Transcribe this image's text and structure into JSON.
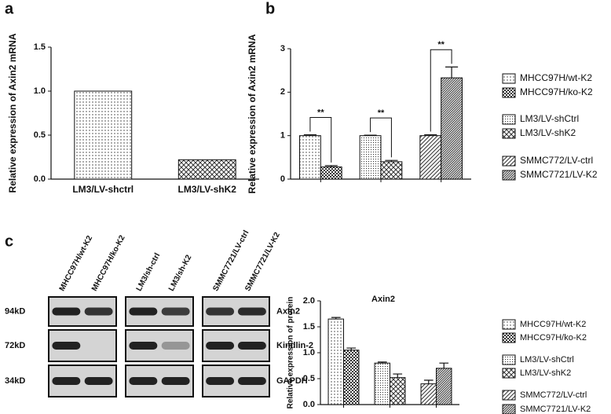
{
  "chart_data": [
    {
      "type": "bar",
      "panel": "a",
      "ylabel": "Relative expression of Axin2 mRNA",
      "categories": [
        "LM3/LV-shctrl",
        "LM3/LV-shK2"
      ],
      "values": [
        1.0,
        0.22
      ],
      "color": "#333333",
      "patterns": [
        "dots",
        "crosshatch"
      ],
      "ylim": [
        0,
        1.5
      ],
      "yticks": [
        {
          "value": 0,
          "label": "0.0"
        },
        0.5,
        {
          "value": 1,
          "label": "1.0"
        },
        1.5
      ]
    },
    {
      "type": "bar",
      "panel": "b",
      "ylabel": "Relative expression of Axin2 mRNA",
      "categories": [
        null,
        null,
        null
      ],
      "annotations": [
        "**",
        "**",
        "**"
      ],
      "series": [
        {
          "name": "MHCC97H/wt-K2",
          "color": "#333333",
          "pattern": "dots",
          "values": [
            1.0,
            null,
            null
          ],
          "errors": [
            0.02,
            null,
            null
          ]
        },
        {
          "name": "MHCC97H/ko-K2",
          "color": "#333333",
          "pattern": "checker",
          "values": [
            0.28,
            null,
            null
          ],
          "errors": [
            0.03,
            null,
            null
          ]
        },
        {
          "name": "LM3/LV-shCtrl",
          "color": "#333333",
          "pattern": "dense-dots",
          "values": [
            null,
            1.0,
            null
          ],
          "errors": [
            null,
            0.01,
            null
          ]
        },
        {
          "name": "LM3/LV-shK2",
          "color": "#333333",
          "pattern": "crosshatch",
          "values": [
            null,
            0.4,
            null
          ],
          "errors": [
            null,
            0.03,
            null
          ]
        },
        {
          "name": "SMMC772/LV-ctrl",
          "color": "#333333",
          "pattern": "diagonal",
          "values": [
            null,
            null,
            1.0
          ],
          "errors": [
            null,
            null,
            0.02
          ]
        },
        {
          "name": "SMMC7721/LV-K2",
          "color": "#333333",
          "pattern": "dense-diagonal",
          "values": [
            null,
            null,
            2.33
          ],
          "errors": [
            null,
            null,
            0.25
          ]
        }
      ],
      "ylim": [
        0,
        3
      ],
      "yticks": [
        0,
        1,
        2,
        3
      ]
    },
    {
      "type": "bar",
      "title": "Axin2",
      "ylabel": "Relative expression of protein",
      "categories": [
        null,
        null,
        null
      ],
      "series": [
        {
          "name": "MHCC97H/wt-K2",
          "color": "#333333",
          "pattern": "dots",
          "values": [
            1.65,
            null,
            null
          ],
          "errors": [
            0.03,
            null,
            null
          ]
        },
        {
          "name": "MHCC97H/ko-K2",
          "color": "#333333",
          "pattern": "checker",
          "values": [
            1.05,
            null,
            null
          ],
          "errors": [
            0.04,
            null,
            null
          ]
        },
        {
          "name": "LM3/LV-shCtrl",
          "color": "#333333",
          "pattern": "dense-dots",
          "values": [
            null,
            0.8,
            null
          ],
          "errors": [
            null,
            0.02,
            null
          ]
        },
        {
          "name": "LM3/LV-shK2",
          "color": "#333333",
          "pattern": "crosshatch",
          "values": [
            null,
            0.52,
            null
          ],
          "errors": [
            null,
            0.07,
            null
          ]
        },
        {
          "name": "SMMC772/LV-ctrl",
          "color": "#333333",
          "pattern": "diagonal",
          "values": [
            null,
            null,
            0.4
          ],
          "errors": [
            null,
            null,
            0.07
          ]
        },
        {
          "name": "SMMC7721/LV-K2",
          "color": "#333333",
          "pattern": "dense-diagonal",
          "values": [
            null,
            null,
            0.7
          ],
          "errors": [
            null,
            null,
            0.1
          ]
        }
      ],
      "ylim": [
        0,
        2
      ],
      "yticks": [
        {
          "value": 0,
          "label": "0.0"
        },
        0.5,
        {
          "value": 1,
          "label": "1.0"
        },
        1.5,
        {
          "value": 2,
          "label": "2.0"
        }
      ]
    }
  ],
  "blot": {
    "panel": "c",
    "lanes": [
      "MHCC97H/wt-K2",
      "MHCC97H/ko-K2",
      "LM3/sh-ctrl",
      "LM3/sh-K2",
      "SMMC7721/LV-ctrl",
      "SMMC7721/LV-K2"
    ],
    "sizes": [
      "94kD",
      "72kD",
      "34kD"
    ],
    "proteins": [
      "Axin2",
      "Kindlin-2",
      "GAPDH"
    ]
  }
}
